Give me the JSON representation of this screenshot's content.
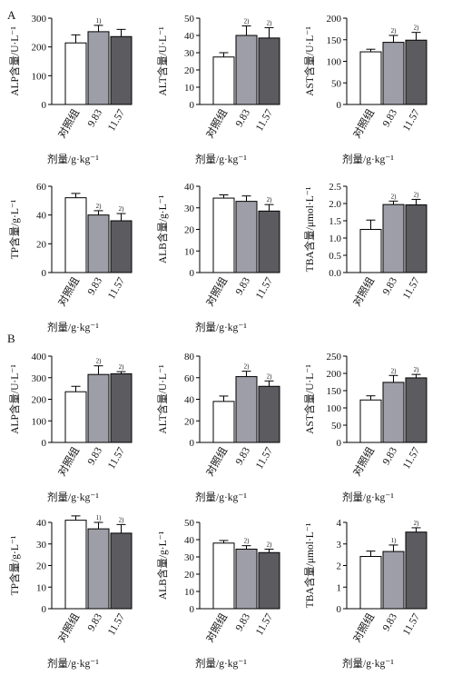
{
  "panels": [
    {
      "id": "A",
      "label": "A"
    },
    {
      "id": "B",
      "label": "B"
    }
  ],
  "chart_data": [
    {
      "type": "bar",
      "panel": "A",
      "ylabel": "ALP含量/U·L⁻¹",
      "xlabel": "剂量/g·kg⁻¹",
      "categories": [
        "对照组",
        "9.83",
        "11.57"
      ],
      "values": [
        214,
        253,
        236
      ],
      "errors": [
        28,
        22,
        25
      ],
      "significance": [
        "",
        "1)",
        ""
      ],
      "ylim": [
        0,
        300
      ],
      "yticks": [
        0,
        100,
        200,
        300
      ],
      "colors": [
        "#ffffff",
        "#9e9ea8",
        "#5b5b60"
      ]
    },
    {
      "type": "bar",
      "panel": "A",
      "ylabel": "ALT含量/U·L⁻¹",
      "xlabel": "剂量/g·kg⁻¹",
      "categories": [
        "对照组",
        "9.83",
        "11.57"
      ],
      "values": [
        27.5,
        40,
        38.5
      ],
      "errors": [
        2.5,
        5.5,
        6
      ],
      "significance": [
        "",
        "2)",
        "2)"
      ],
      "ylim": [
        0,
        50
      ],
      "yticks": [
        0,
        10,
        20,
        30,
        40,
        50
      ],
      "colors": [
        "#ffffff",
        "#9e9ea8",
        "#5b5b60"
      ]
    },
    {
      "type": "bar",
      "panel": "A",
      "ylabel": "AST含量/U·L⁻¹",
      "xlabel": "剂量/g·kg⁻¹",
      "categories": [
        "对照组",
        "9.83",
        "11.57"
      ],
      "values": [
        122,
        144,
        149
      ],
      "errors": [
        6,
        16,
        18
      ],
      "significance": [
        "",
        "2)",
        "2)"
      ],
      "ylim": [
        0,
        200
      ],
      "yticks": [
        0,
        50,
        100,
        150,
        200
      ],
      "colors": [
        "#ffffff",
        "#9e9ea8",
        "#5b5b60"
      ]
    },
    {
      "type": "bar",
      "panel": "A",
      "ylabel": "TP含量/g·L⁻¹",
      "xlabel": "剂量/g·kg⁻¹",
      "categories": [
        "对照组",
        "9.83",
        "11.57"
      ],
      "values": [
        52,
        40,
        36
      ],
      "errors": [
        3,
        3,
        5
      ],
      "significance": [
        "",
        "2)",
        "2)"
      ],
      "ylim": [
        0,
        60
      ],
      "yticks": [
        0,
        20,
        40,
        60
      ],
      "colors": [
        "#ffffff",
        "#9e9ea8",
        "#5b5b60"
      ]
    },
    {
      "type": "bar",
      "panel": "A",
      "ylabel": "ALB含量/g·L⁻¹",
      "xlabel": "剂量/g·kg⁻¹",
      "categories": [
        "对照组",
        "9.83",
        "11.57"
      ],
      "values": [
        34.5,
        33,
        28.5
      ],
      "errors": [
        1.5,
        2.5,
        3
      ],
      "significance": [
        "",
        "",
        "2)"
      ],
      "ylim": [
        0,
        40
      ],
      "yticks": [
        0,
        10,
        20,
        30,
        40
      ],
      "colors": [
        "#ffffff",
        "#9e9ea8",
        "#5b5b60"
      ]
    },
    {
      "type": "bar",
      "panel": "A",
      "ylabel": "TBA含量/μmol·L⁻¹",
      "xlabel": "",
      "categories": [
        "对照组",
        "9.83",
        "11.57"
      ],
      "values": [
        1.25,
        1.97,
        1.96
      ],
      "errors": [
        0.27,
        0.1,
        0.16
      ],
      "significance": [
        "",
        "2)",
        "2)"
      ],
      "ylim": [
        0,
        2.5
      ],
      "yticks": [
        0.0,
        0.5,
        1.0,
        1.5,
        2.0,
        2.5
      ],
      "colors": [
        "#ffffff",
        "#9e9ea8",
        "#5b5b60"
      ]
    },
    {
      "type": "bar",
      "panel": "B",
      "ylabel": "ALP含量/U·L⁻¹",
      "xlabel": "剂量/g·kg⁻¹",
      "categories": [
        "对照组",
        "9.83",
        "11.57"
      ],
      "values": [
        235,
        315,
        318
      ],
      "errors": [
        25,
        40,
        10
      ],
      "significance": [
        "",
        "2)",
        "2)"
      ],
      "ylim": [
        0,
        400
      ],
      "yticks": [
        0,
        100,
        200,
        300,
        400
      ],
      "colors": [
        "#ffffff",
        "#9e9ea8",
        "#5b5b60"
      ]
    },
    {
      "type": "bar",
      "panel": "B",
      "ylabel": "ALT含量/U·L⁻¹",
      "xlabel": "剂量/g·kg⁻¹",
      "categories": [
        "对照组",
        "9.83",
        "11.57"
      ],
      "values": [
        38,
        61,
        52
      ],
      "errors": [
        5,
        5,
        5
      ],
      "significance": [
        "",
        "2)",
        "2)"
      ],
      "ylim": [
        0,
        80
      ],
      "yticks": [
        0,
        20,
        40,
        60,
        80
      ],
      "colors": [
        "#ffffff",
        "#9e9ea8",
        "#5b5b60"
      ]
    },
    {
      "type": "bar",
      "panel": "B",
      "ylabel": "AST含量/U·L⁻¹",
      "xlabel": "剂量/g·kg⁻¹",
      "categories": [
        "对照组",
        "9.83",
        "11.57"
      ],
      "values": [
        123,
        174,
        187
      ],
      "errors": [
        12,
        20,
        10
      ],
      "significance": [
        "",
        "2)",
        "2)"
      ],
      "ylim": [
        0,
        250
      ],
      "yticks": [
        0,
        50,
        100,
        150,
        200,
        250
      ],
      "colors": [
        "#ffffff",
        "#9e9ea8",
        "#5b5b60"
      ]
    },
    {
      "type": "bar",
      "panel": "B",
      "ylabel": "TP含量/g·L⁻¹",
      "xlabel": "剂量/g·kg⁻¹",
      "categories": [
        "对照组",
        "9.83",
        "11.57"
      ],
      "values": [
        41,
        37,
        35
      ],
      "errors": [
        2,
        3,
        4
      ],
      "significance": [
        "",
        "1)",
        "2)"
      ],
      "ylim": [
        0,
        40
      ],
      "yticks": [
        0,
        10,
        20,
        30,
        40
      ],
      "colors": [
        "#ffffff",
        "#9e9ea8",
        "#5b5b60"
      ]
    },
    {
      "type": "bar",
      "panel": "B",
      "ylabel": "ALB含量/g·L⁻¹",
      "xlabel": "剂量/g·kg⁻¹",
      "categories": [
        "对照组",
        "9.83",
        "11.57"
      ],
      "values": [
        38,
        34.5,
        32.5
      ],
      "errors": [
        1.5,
        2,
        2
      ],
      "significance": [
        "",
        "2)",
        "2)"
      ],
      "ylim": [
        0,
        50
      ],
      "yticks": [
        0,
        10,
        20,
        30,
        40,
        50
      ],
      "colors": [
        "#ffffff",
        "#9e9ea8",
        "#5b5b60"
      ]
    },
    {
      "type": "bar",
      "panel": "B",
      "ylabel": "TBA含量/μmol·L⁻¹",
      "xlabel": "剂量/g·kg⁻¹",
      "categories": [
        "对照组",
        "9.83",
        "11.57"
      ],
      "values": [
        2.42,
        2.65,
        3.55
      ],
      "errors": [
        0.25,
        0.3,
        0.2
      ],
      "significance": [
        "",
        "1)",
        "2)"
      ],
      "ylim": [
        0,
        4
      ],
      "yticks": [
        0,
        1,
        2,
        3,
        4
      ],
      "colors": [
        "#ffffff",
        "#9e9ea8",
        "#5b5b60"
      ]
    }
  ]
}
